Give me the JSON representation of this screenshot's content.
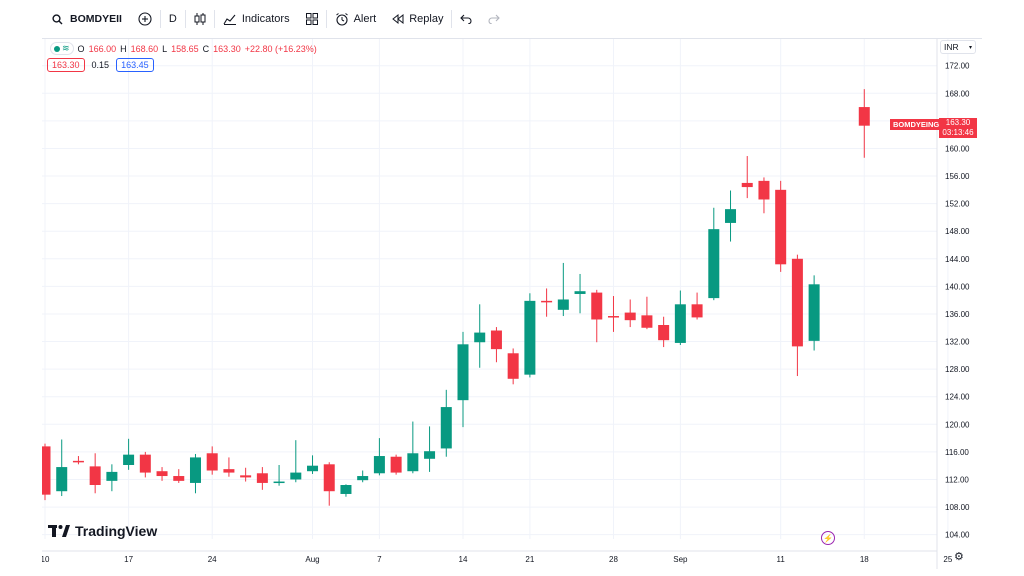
{
  "toolbar": {
    "symbol": "BOMDYEII",
    "interval": "D",
    "indicators_label": "Indicators",
    "alert_label": "Alert",
    "replay_label": "Replay",
    "icons": [
      "search-icon",
      "add-symbol-icon",
      "candles-icon",
      "indicators-icon",
      "layouts-icon",
      "alert-icon",
      "replay-icon",
      "undo-icon",
      "redo-icon"
    ]
  },
  "legend": {
    "open_label": "O",
    "open": "166.00",
    "high_label": "H",
    "high": "168.60",
    "low_label": "L",
    "low": "158.65",
    "close_label": "C",
    "close": "163.30",
    "change": "+22.80 (+16.23%)",
    "sell_price": "163.30",
    "spread": "0.15",
    "buy_price": "163.45"
  },
  "currency": "INR",
  "price_label": {
    "symbol": "BOMDYEING",
    "price": "163.30",
    "countdown": "03:13:46"
  },
  "branding": "TradingView",
  "colors": {
    "up": "#089981",
    "down": "#f23645",
    "grid": "#f0f3fa",
    "axis_text": "#131722"
  },
  "chart_data": {
    "type": "candlestick",
    "y_ticks": [
      "104.00",
      "108.00",
      "112.00",
      "116.00",
      "120.00",
      "124.00",
      "128.00",
      "132.00",
      "136.00",
      "140.00",
      "144.00",
      "148.00",
      "152.00",
      "156.00",
      "160.00",
      "164.00",
      "168.00",
      "172.00"
    ],
    "ylim": [
      102.5,
      175
    ],
    "x_ticks": [
      {
        "label": "10",
        "i": 0
      },
      {
        "label": "17",
        "i": 5
      },
      {
        "label": "24",
        "i": 10
      },
      {
        "label": "Aug",
        "i": 16
      },
      {
        "label": "7",
        "i": 20
      },
      {
        "label": "14",
        "i": 25
      },
      {
        "label": "21",
        "i": 29
      },
      {
        "label": "28",
        "i": 34
      },
      {
        "label": "Sep",
        "i": 38
      },
      {
        "label": "11",
        "i": 44
      },
      {
        "label": "18",
        "i": 49
      },
      {
        "label": "25",
        "i": 54
      }
    ],
    "candles": [
      {
        "o": 116.8,
        "h": 117.2,
        "l": 109.0,
        "c": 109.8
      },
      {
        "o": 110.3,
        "h": 117.8,
        "l": 109.6,
        "c": 113.8
      },
      {
        "o": 114.7,
        "h": 115.4,
        "l": 114.2,
        "c": 114.6
      },
      {
        "o": 113.9,
        "h": 115.8,
        "l": 110.0,
        "c": 111.2
      },
      {
        "o": 111.8,
        "h": 114.2,
        "l": 110.3,
        "c": 113.1
      },
      {
        "o": 114.1,
        "h": 117.9,
        "l": 113.4,
        "c": 115.6
      },
      {
        "o": 115.6,
        "h": 116.0,
        "l": 112.3,
        "c": 113.0
      },
      {
        "o": 113.2,
        "h": 113.8,
        "l": 111.8,
        "c": 112.5
      },
      {
        "o": 112.5,
        "h": 113.5,
        "l": 111.5,
        "c": 111.8
      },
      {
        "o": 111.5,
        "h": 115.7,
        "l": 110.0,
        "c": 115.2
      },
      {
        "o": 115.8,
        "h": 116.8,
        "l": 112.7,
        "c": 113.3
      },
      {
        "o": 113.5,
        "h": 115.2,
        "l": 112.4,
        "c": 113.0
      },
      {
        "o": 112.6,
        "h": 113.7,
        "l": 111.7,
        "c": 112.3
      },
      {
        "o": 112.9,
        "h": 113.8,
        "l": 110.5,
        "c": 111.5
      },
      {
        "o": 111.7,
        "h": 114.1,
        "l": 111.1,
        "c": 111.7
      },
      {
        "o": 112.0,
        "h": 117.7,
        "l": 111.6,
        "c": 113.0
      },
      {
        "o": 113.2,
        "h": 115.5,
        "l": 112.8,
        "c": 114.0
      },
      {
        "o": 114.2,
        "h": 114.5,
        "l": 108.2,
        "c": 110.3
      },
      {
        "o": 109.9,
        "h": 111.3,
        "l": 109.5,
        "c": 111.2
      },
      {
        "o": 111.9,
        "h": 113.3,
        "l": 111.6,
        "c": 112.5
      },
      {
        "o": 112.9,
        "h": 118.0,
        "l": 112.6,
        "c": 115.4
      },
      {
        "o": 115.3,
        "h": 115.6,
        "l": 112.7,
        "c": 113.0
      },
      {
        "o": 113.2,
        "h": 120.4,
        "l": 112.9,
        "c": 115.8
      },
      {
        "o": 115.0,
        "h": 119.7,
        "l": 113.1,
        "c": 116.1
      },
      {
        "o": 116.5,
        "h": 125.0,
        "l": 115.3,
        "c": 122.5
      },
      {
        "o": 123.5,
        "h": 133.4,
        "l": 119.6,
        "c": 131.6
      },
      {
        "o": 131.9,
        "h": 137.4,
        "l": 128.2,
        "c": 133.3
      },
      {
        "o": 133.6,
        "h": 134.1,
        "l": 129.0,
        "c": 130.9
      },
      {
        "o": 130.3,
        "h": 131.0,
        "l": 125.8,
        "c": 126.6
      },
      {
        "o": 127.2,
        "h": 139.0,
        "l": 126.8,
        "c": 137.9
      },
      {
        "o": 137.9,
        "h": 139.7,
        "l": 135.6,
        "c": 137.7
      },
      {
        "o": 136.6,
        "h": 143.4,
        "l": 135.7,
        "c": 138.1
      },
      {
        "o": 138.9,
        "h": 141.8,
        "l": 136.1,
        "c": 139.3
      },
      {
        "o": 139.1,
        "h": 139.5,
        "l": 131.9,
        "c": 135.2
      },
      {
        "o": 135.7,
        "h": 138.6,
        "l": 133.4,
        "c": 135.5
      },
      {
        "o": 136.2,
        "h": 138.1,
        "l": 134.1,
        "c": 135.1
      },
      {
        "o": 135.8,
        "h": 138.5,
        "l": 133.8,
        "c": 134.0
      },
      {
        "o": 134.4,
        "h": 135.6,
        "l": 131.2,
        "c": 132.2
      },
      {
        "o": 131.8,
        "h": 139.4,
        "l": 131.5,
        "c": 137.4
      },
      {
        "o": 137.4,
        "h": 139.1,
        "l": 135.2,
        "c": 135.5
      },
      {
        "o": 138.3,
        "h": 151.4,
        "l": 138.0,
        "c": 148.3
      },
      {
        "o": 149.2,
        "h": 153.9,
        "l": 146.5,
        "c": 151.2
      },
      {
        "o": 155.0,
        "h": 158.9,
        "l": 152.8,
        "c": 154.4
      },
      {
        "o": 155.3,
        "h": 155.8,
        "l": 150.6,
        "c": 152.6
      },
      {
        "o": 154.0,
        "h": 155.3,
        "l": 142.1,
        "c": 143.2
      },
      {
        "o": 144.0,
        "h": 144.6,
        "l": 127.0,
        "c": 131.3
      },
      {
        "o": 132.1,
        "h": 141.6,
        "l": 130.7,
        "c": 140.3
      },
      null,
      null,
      {
        "o": 166.0,
        "h": 168.6,
        "l": 158.65,
        "c": 163.3
      }
    ]
  }
}
